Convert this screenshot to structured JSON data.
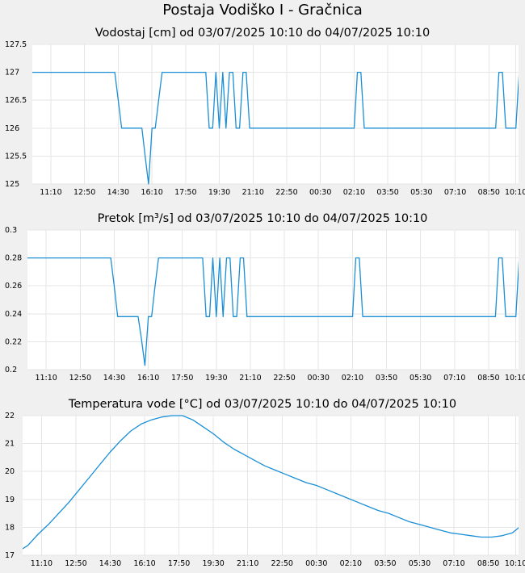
{
  "page": {
    "title": "Postaja Vodiško I - Gračnica"
  },
  "colors": {
    "series": "#1a8fd6",
    "background": "#f0f0f0",
    "plot": "#ffffff",
    "grid": "#e6e6e6"
  },
  "chart_data": [
    {
      "type": "line",
      "title": "Vodostaj [cm] od 03/07/2025 10:10 do 04/07/2025 10:10",
      "xlabel": "",
      "ylabel": "",
      "ylim": [
        125,
        127.5
      ],
      "yticks": [
        "125",
        "125.5",
        "126",
        "126.5",
        "127",
        "127.5"
      ],
      "xlim": [
        10.25,
        34.3
      ],
      "xticks": [
        "11:10",
        "12:50",
        "14:30",
        "16:10",
        "17:50",
        "19:30",
        "21:10",
        "22:50",
        "00:30",
        "02:10",
        "03:50",
        "05:30",
        "07:10",
        "08:50",
        "10:10"
      ],
      "grid": true,
      "legend": "none",
      "series": [
        {
          "x": [
            10.17,
            14.33,
            14.5,
            14.67,
            15.67,
            15.83,
            16.0,
            16.17,
            16.33,
            16.5,
            16.67,
            18.83,
            19.0,
            19.17,
            19.33,
            19.5,
            19.67,
            19.83,
            20.0,
            20.17,
            20.33,
            20.5,
            20.67,
            20.83,
            21.0,
            26.17,
            26.33,
            26.5,
            26.67,
            26.83,
            33.17,
            33.33,
            33.5,
            33.67,
            33.83,
            34.17,
            34.33,
            34.5,
            34.67,
            34.83,
            35.17
          ],
          "y": [
            127,
            127,
            126.5,
            126,
            126,
            125.5,
            125,
            126,
            126,
            126.5,
            127,
            127,
            126,
            126,
            127,
            126,
            127,
            126,
            127,
            127,
            126,
            126,
            127,
            127,
            126,
            126,
            127,
            127,
            126,
            126,
            126,
            127,
            127,
            126,
            126,
            126,
            127,
            126,
            126,
            127,
            127
          ]
        }
      ]
    },
    {
      "type": "line",
      "title": "Pretok [m³/s] od 03/07/2025 10:10 do 04/07/2025 10:10",
      "xlabel": "",
      "ylabel": "",
      "ylim": [
        0.2,
        0.3
      ],
      "yticks": [
        "0.2",
        "0.22",
        "0.24",
        "0.26",
        "0.28",
        "0.3"
      ],
      "xlim": [
        10.25,
        34.3
      ],
      "xticks": [
        "11:10",
        "12:50",
        "14:30",
        "16:10",
        "17:50",
        "19:30",
        "21:10",
        "22:50",
        "00:30",
        "02:10",
        "03:50",
        "05:30",
        "07:10",
        "08:50",
        "10:10"
      ],
      "grid": true,
      "legend": "none",
      "series": [
        {
          "x": [
            10.17,
            14.33,
            14.5,
            14.67,
            15.67,
            15.83,
            16.0,
            16.17,
            16.33,
            16.5,
            16.67,
            18.83,
            19.0,
            19.17,
            19.33,
            19.5,
            19.67,
            19.83,
            20.0,
            20.17,
            20.33,
            20.5,
            20.67,
            20.83,
            21.0,
            26.17,
            26.33,
            26.5,
            26.67,
            26.83,
            33.17,
            33.33,
            33.5,
            33.67,
            33.83,
            34.17,
            34.33,
            34.5,
            34.67,
            34.83,
            35.17
          ],
          "y": [
            0.28,
            0.28,
            0.26,
            0.238,
            0.238,
            0.222,
            0.203,
            0.238,
            0.238,
            0.26,
            0.28,
            0.28,
            0.238,
            0.238,
            0.28,
            0.238,
            0.28,
            0.238,
            0.28,
            0.28,
            0.238,
            0.238,
            0.28,
            0.28,
            0.238,
            0.238,
            0.28,
            0.28,
            0.238,
            0.238,
            0.238,
            0.28,
            0.28,
            0.238,
            0.238,
            0.238,
            0.28,
            0.238,
            0.238,
            0.28,
            0.28
          ]
        }
      ]
    },
    {
      "type": "line",
      "title": "Temperatura vode [°C] od 03/07/2025 10:10 do 04/07/2025 10:10",
      "xlabel": "",
      "ylabel": "",
      "ylim": [
        17,
        22
      ],
      "yticks": [
        "17",
        "18",
        "19",
        "20",
        "21",
        "22"
      ],
      "xlim": [
        10.25,
        34.3
      ],
      "xticks": [
        "11:10",
        "12:50",
        "14:30",
        "16:10",
        "17:50",
        "19:30",
        "21:10",
        "22:50",
        "00:30",
        "02:10",
        "03:50",
        "05:30",
        "07:10",
        "08:50",
        "10:10"
      ],
      "grid": true,
      "legend": "none",
      "series": [
        {
          "x": [
            10.17,
            10.5,
            11.0,
            11.5,
            12.0,
            12.5,
            13.0,
            13.5,
            14.0,
            14.5,
            15.0,
            15.5,
            16.0,
            16.5,
            17.0,
            17.5,
            18.0,
            18.5,
            19.0,
            19.5,
            20.0,
            20.5,
            21.0,
            21.5,
            22.0,
            22.5,
            23.0,
            23.5,
            24.0,
            24.5,
            25.0,
            25.5,
            26.0,
            26.5,
            27.0,
            27.5,
            28.0,
            28.5,
            29.0,
            29.5,
            30.0,
            30.5,
            31.0,
            31.5,
            32.0,
            32.5,
            33.0,
            33.5,
            34.0,
            34.33
          ],
          "y": [
            17.2,
            17.35,
            17.75,
            18.1,
            18.5,
            18.9,
            19.35,
            19.8,
            20.25,
            20.7,
            21.1,
            21.45,
            21.7,
            21.85,
            21.95,
            22.0,
            22.0,
            21.85,
            21.6,
            21.35,
            21.05,
            20.8,
            20.6,
            20.4,
            20.2,
            20.05,
            19.9,
            19.75,
            19.6,
            19.5,
            19.35,
            19.2,
            19.05,
            18.9,
            18.75,
            18.6,
            18.5,
            18.35,
            18.2,
            18.1,
            18.0,
            17.9,
            17.8,
            17.75,
            17.7,
            17.65,
            17.65,
            17.7,
            17.8,
            18.0
          ]
        }
      ]
    }
  ]
}
